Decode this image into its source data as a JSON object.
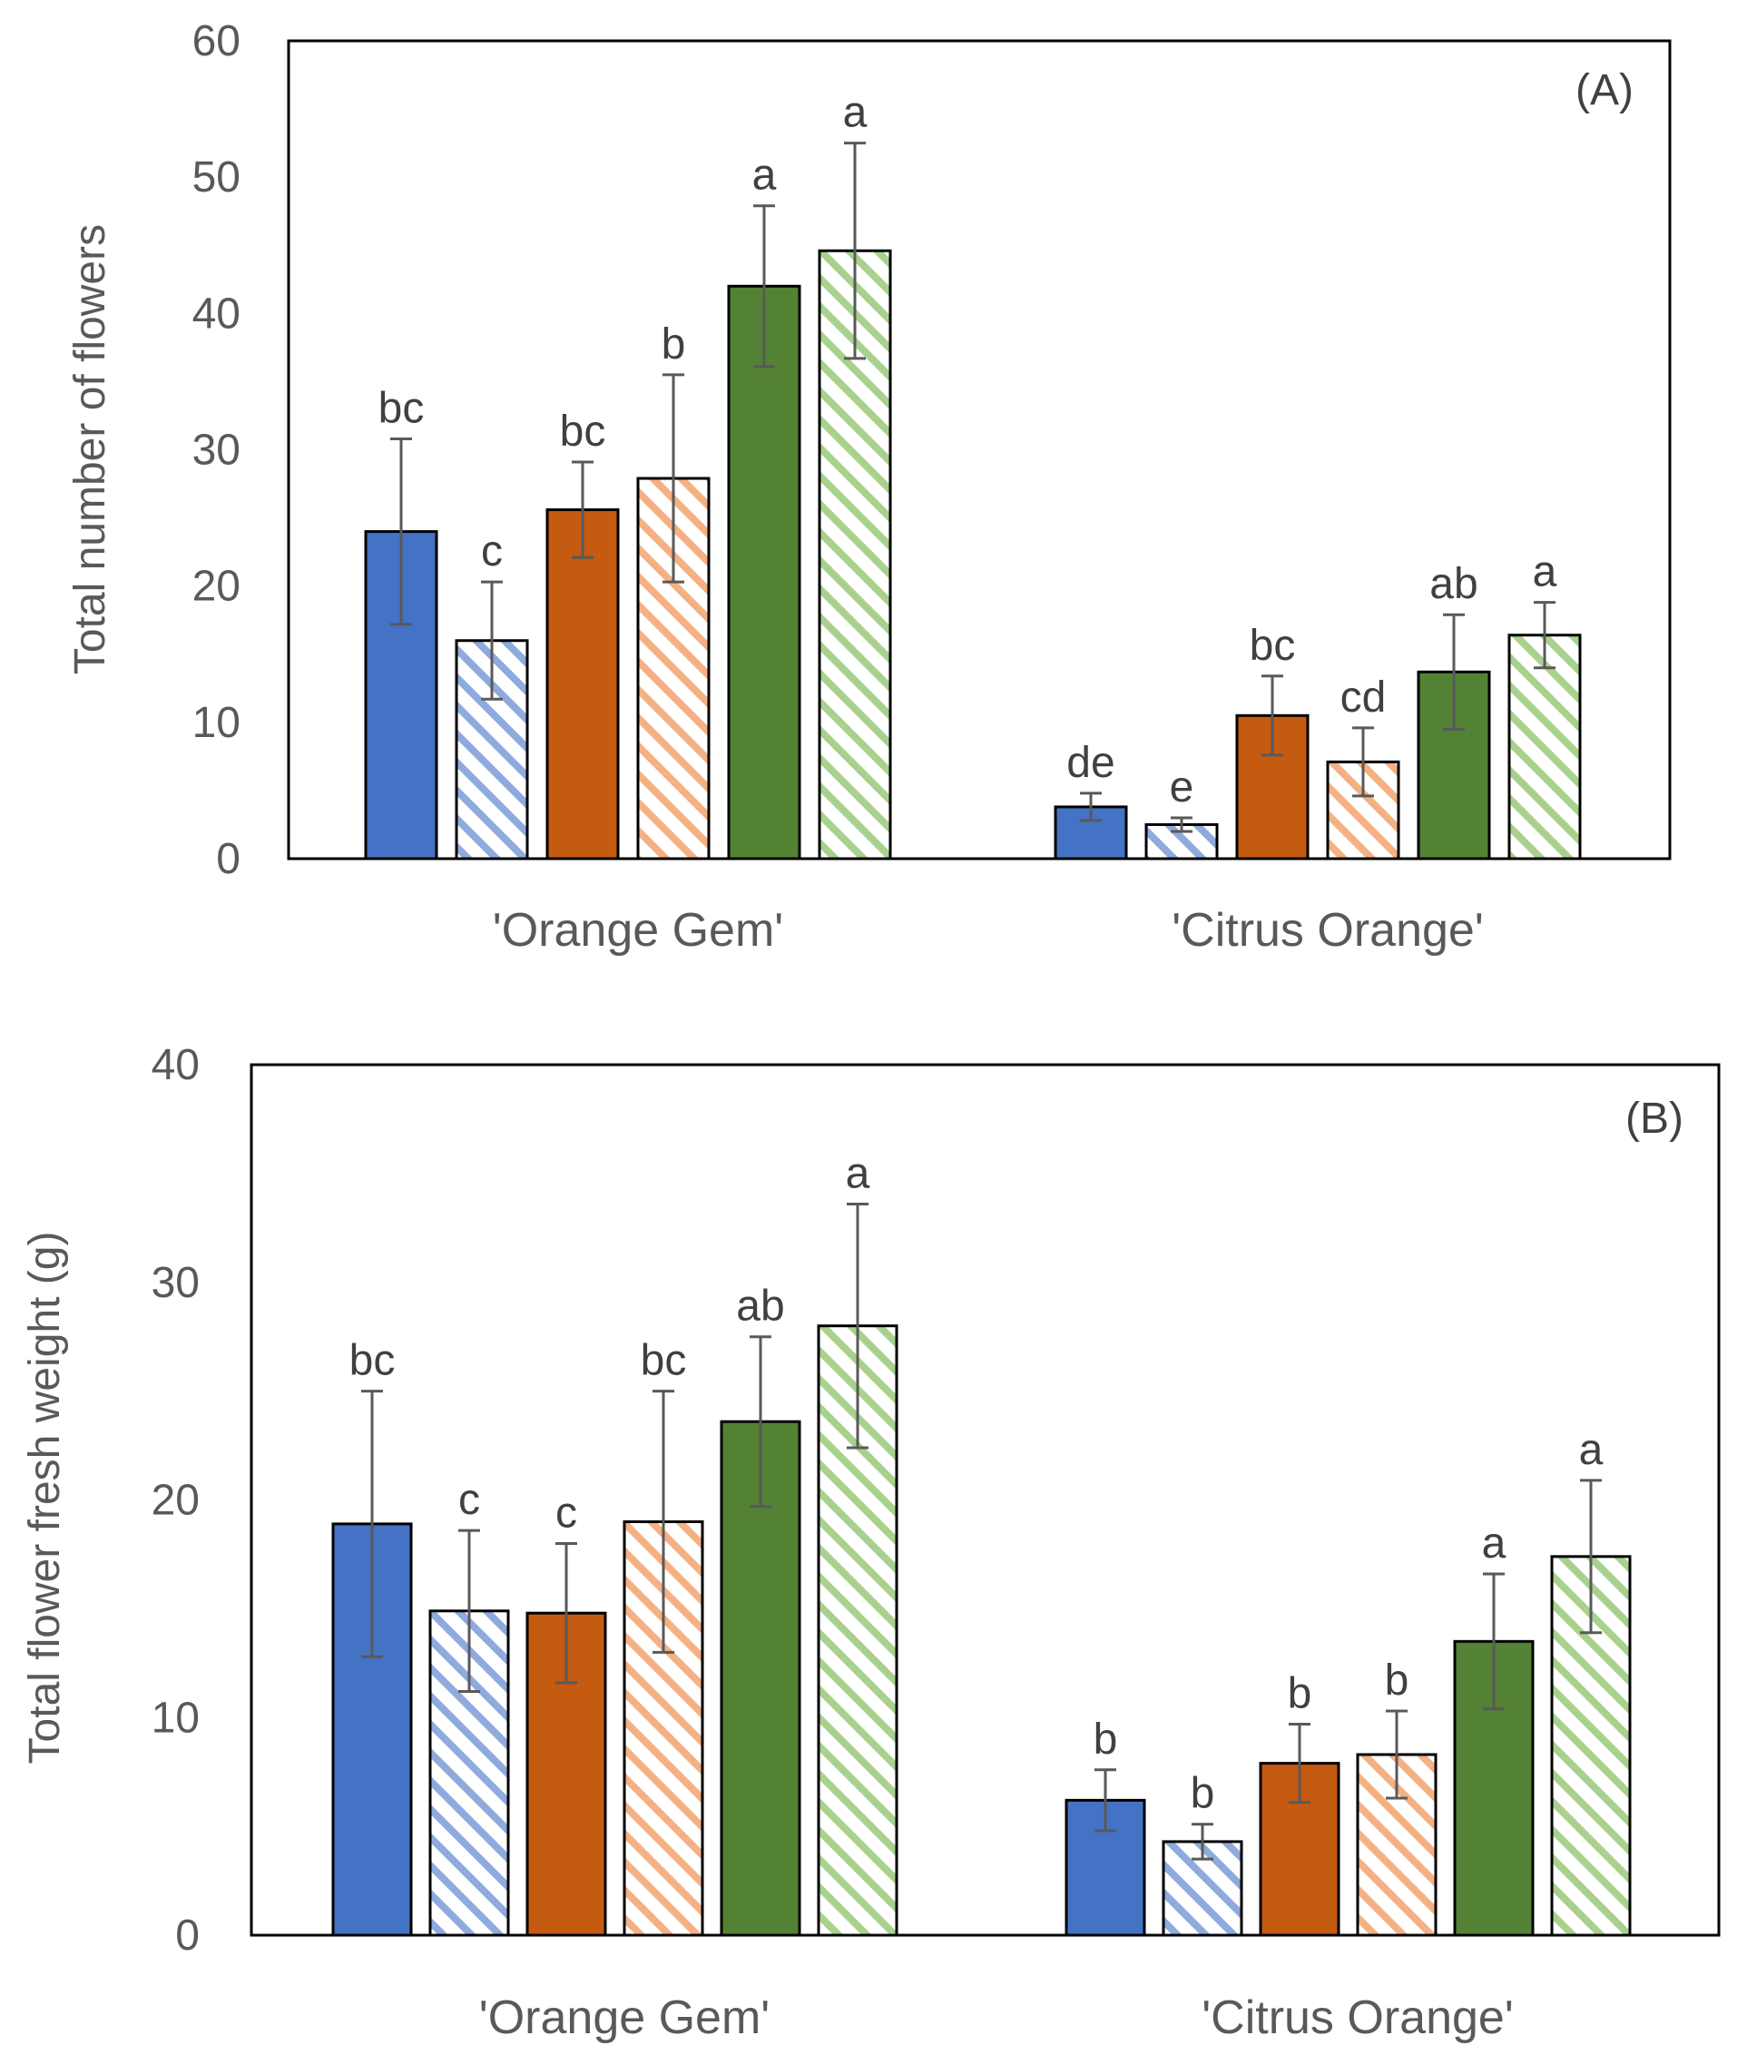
{
  "chart_data": [
    {
      "type": "bar",
      "panel_label": "(A)",
      "title": "",
      "xlabel": "",
      "ylabel": "Total number of flowers",
      "ylim": [
        0,
        60
      ],
      "yticks": [
        "0",
        "10",
        "20",
        "30",
        "40",
        "50",
        "60"
      ],
      "categories": [
        "'Orange Gem'",
        "'Citrus Orange'"
      ],
      "series": [
        {
          "name": "blue solid",
          "color": "#4472C4",
          "pattern": "solid",
          "values": [
            24,
            3.8
          ],
          "errors": [
            6.8,
            1.0
          ],
          "letters": [
            "bc",
            "de"
          ]
        },
        {
          "name": "blue hatched",
          "color": "#8FAADC",
          "pattern": "hatch",
          "values": [
            16,
            2.5
          ],
          "errors": [
            4.3,
            0.5
          ],
          "letters": [
            "c",
            "e"
          ]
        },
        {
          "name": "orange solid",
          "color": "#C55A11",
          "pattern": "solid",
          "values": [
            25.6,
            10.5
          ],
          "errors": [
            3.5,
            2.9
          ],
          "letters": [
            "bc",
            "bc"
          ]
        },
        {
          "name": "orange hatched",
          "color": "#F4B183",
          "pattern": "hatch",
          "values": [
            27.9,
            7.1
          ],
          "errors": [
            7.6,
            2.5
          ],
          "letters": [
            "b",
            "cd"
          ]
        },
        {
          "name": "green solid",
          "color": "#548235",
          "pattern": "solid",
          "values": [
            42,
            13.7
          ],
          "errors": [
            5.9,
            4.2
          ],
          "letters": [
            "a",
            "ab"
          ]
        },
        {
          "name": "green hatched",
          "color": "#A9D18E",
          "pattern": "hatch",
          "values": [
            44.6,
            16.4
          ],
          "errors": [
            7.9,
            2.4
          ],
          "letters": [
            "a",
            "a"
          ]
        }
      ]
    },
    {
      "type": "bar",
      "panel_label": "(B)",
      "title": "",
      "xlabel": "",
      "ylabel": "Total flower fresh weight (g)",
      "ylim": [
        0,
        40
      ],
      "yticks": [
        "0",
        "10",
        "20",
        "30",
        "40"
      ],
      "categories": [
        "'Orange Gem'",
        "'Citrus Orange'"
      ],
      "series": [
        {
          "name": "blue solid",
          "color": "#4472C4",
          "pattern": "solid",
          "values": [
            18.9,
            6.2
          ],
          "errors": [
            6.1,
            1.4
          ],
          "letters": [
            "bc",
            "b"
          ]
        },
        {
          "name": "blue hatched",
          "color": "#8FAADC",
          "pattern": "hatch",
          "values": [
            14.9,
            4.3
          ],
          "errors": [
            3.7,
            0.8
          ],
          "letters": [
            "c",
            "b"
          ]
        },
        {
          "name": "orange solid",
          "color": "#C55A11",
          "pattern": "solid",
          "values": [
            14.8,
            7.9
          ],
          "errors": [
            3.2,
            1.8
          ],
          "letters": [
            "c",
            "b"
          ]
        },
        {
          "name": "orange hatched",
          "color": "#F4B183",
          "pattern": "hatch",
          "values": [
            19.0,
            8.3
          ],
          "errors": [
            6.0,
            2.0
          ],
          "letters": [
            "bc",
            "b"
          ]
        },
        {
          "name": "green solid",
          "color": "#548235",
          "pattern": "solid",
          "values": [
            23.6,
            13.5
          ],
          "errors": [
            3.9,
            3.1
          ],
          "letters": [
            "ab",
            "a"
          ]
        },
        {
          "name": "green hatched",
          "color": "#A9D18E",
          "pattern": "hatch",
          "values": [
            28.0,
            17.4
          ],
          "errors": [
            5.6,
            3.5
          ],
          "letters": [
            "a",
            "a"
          ]
        }
      ]
    }
  ]
}
